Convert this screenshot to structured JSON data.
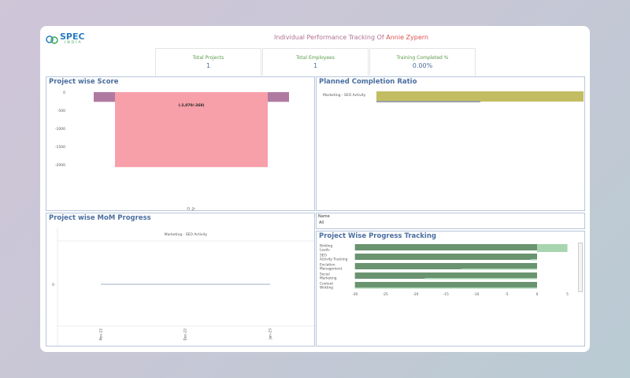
{
  "header": {
    "logo_text": "SPEC",
    "logo_sub": "INDIA",
    "title_prefix": "Individual Performance Tracking Of ",
    "title_name": "Annie Zypern"
  },
  "kpis": [
    {
      "label": "Total Projects",
      "value": "1"
    },
    {
      "label": "Total Employees",
      "value": "1"
    },
    {
      "label": "Training Completed %",
      "value": "0.00%"
    }
  ],
  "colors": {
    "title_name": "#d9534f",
    "title": "#b07090",
    "panel_title": "#4a6fa0",
    "score_bar": "#f7a0aa",
    "score_side": "#b07aa0",
    "planned": "#c2bd62",
    "progress_dark": "#6a9470",
    "progress_light": "#a8d4b0"
  },
  "filter": {
    "label": "Name",
    "value": "All"
  },
  "chart_data": [
    {
      "type": "bar",
      "title": "Project wise Score",
      "categories": [
        "Marketing - SEO Activity"
      ],
      "values": [
        -2070
      ],
      "reference": -268,
      "data_label": "(-2,070/-268)",
      "yticks": [
        0,
        -500,
        -1000,
        -1500,
        -2000
      ],
      "ylim": [
        -2100,
        0
      ]
    },
    {
      "type": "bar",
      "title": "Planned Completion Ratio",
      "orientation": "horizontal",
      "categories": [
        "Marketing - SEO Activity"
      ],
      "planned": 1.0,
      "actual": 0.5
    },
    {
      "type": "line",
      "title": "Project wise MoM Progress",
      "header": "Marketing - SEO Activity",
      "x": [
        "Nov-22",
        "Dec-22",
        "Jan-23"
      ],
      "values": [
        0,
        0,
        0
      ],
      "yticks": [
        "0"
      ]
    },
    {
      "type": "bar",
      "title": "Project Wise Progress Tracking",
      "orientation": "horizontal",
      "categories": [
        "Bidding Leads",
        "SEO Activity Tracking",
        "Exclation Management",
        "Social Marketing",
        "Content Writting"
      ],
      "series": [
        {
          "values": [
            -30,
            -30,
            -30,
            -30,
            -30
          ]
        },
        {
          "values": [
            5,
            -1,
            -12.5,
            -18.5,
            -30
          ]
        }
      ],
      "xticks": [
        -30,
        -25,
        -20,
        -15,
        -10,
        -5,
        0,
        5
      ],
      "xlim": [
        -30,
        5
      ]
    }
  ]
}
